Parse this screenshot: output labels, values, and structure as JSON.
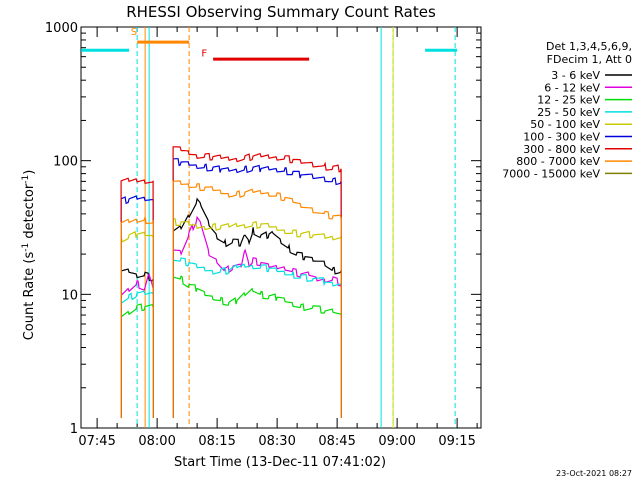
{
  "chart_data": {
    "type": "line",
    "title": "RHESSI Observing Summary Count Rates",
    "xlabel": "Start Time (13-Dec-11 07:41:02)",
    "ylabel_main": "Count Rate (s",
    "ylabel_sup1": "-1",
    "ylabel_mid": " detector",
    "ylabel_sup2": "-1",
    "ylabel_end": ")",
    "yscale": "log",
    "ylim": [
      1,
      1000
    ],
    "xlim_minutes": [
      -3.03,
      96.97
    ],
    "x_origin": "07:44",
    "y_ticks": [
      1,
      10,
      100,
      1000
    ],
    "y_tick_labels": [
      "1",
      "10",
      "100",
      "1000"
    ],
    "x_ticks_minutes": [
      1,
      16,
      31,
      46,
      61,
      76,
      91
    ],
    "x_tick_labels": [
      "07:45",
      "08:00",
      "08:15",
      "08:30",
      "08:45",
      "09:00",
      "09:15"
    ],
    "legend_header": [
      "Det 1,3,4,5,6,9,",
      "FDecim 1, Att 0"
    ],
    "legend_position": "right",
    "series": [
      {
        "name": "3 - 6 keV",
        "color": "#000000",
        "seg1": [
          [
            7,
            15
          ],
          [
            9,
            15
          ],
          [
            11,
            14
          ],
          [
            13,
            14
          ],
          [
            15,
            13
          ]
        ],
        "seg2": [
          [
            20,
            30
          ],
          [
            22,
            32
          ],
          [
            24,
            40
          ],
          [
            26,
            50
          ],
          [
            27,
            45
          ],
          [
            29,
            33
          ],
          [
            31,
            27
          ],
          [
            33,
            24
          ],
          [
            35,
            25
          ],
          [
            37,
            24
          ],
          [
            38,
            28
          ],
          [
            39,
            25
          ],
          [
            40,
            30
          ],
          [
            42,
            27
          ],
          [
            44,
            28
          ],
          [
            45,
            29
          ],
          [
            47,
            25
          ],
          [
            49,
            22
          ],
          [
            51,
            20
          ],
          [
            53,
            19
          ],
          [
            55,
            18
          ],
          [
            58,
            17
          ],
          [
            60,
            15
          ],
          [
            62,
            15
          ]
        ]
      },
      {
        "name": "6 - 12 keV",
        "color": "#e000e0",
        "seg1": [
          [
            7,
            10
          ],
          [
            9,
            11
          ],
          [
            11,
            12
          ],
          [
            13,
            11
          ],
          [
            14,
            14
          ],
          [
            15,
            11
          ]
        ],
        "seg2": [
          [
            20,
            22
          ],
          [
            22,
            21
          ],
          [
            24,
            28
          ],
          [
            26,
            37
          ],
          [
            27,
            33
          ],
          [
            29,
            20
          ],
          [
            31,
            18
          ],
          [
            33,
            15
          ],
          [
            35,
            16
          ],
          [
            37,
            16
          ],
          [
            38,
            22
          ],
          [
            39,
            17
          ],
          [
            40,
            18
          ],
          [
            42,
            17
          ],
          [
            44,
            16
          ],
          [
            46,
            16
          ],
          [
            48,
            16
          ],
          [
            50,
            15
          ],
          [
            52,
            14
          ],
          [
            54,
            14
          ],
          [
            56,
            13
          ],
          [
            58,
            13
          ],
          [
            60,
            13
          ],
          [
            62,
            12
          ]
        ]
      },
      {
        "name": "12 - 25 keV",
        "color": "#00dd00",
        "seg1": [
          [
            7,
            7
          ],
          [
            9,
            7.5
          ],
          [
            11,
            8
          ],
          [
            13,
            8
          ],
          [
            15,
            8
          ]
        ],
        "seg2": [
          [
            20,
            14
          ],
          [
            22,
            13
          ],
          [
            24,
            11.5
          ],
          [
            26,
            11
          ],
          [
            28,
            10
          ],
          [
            30,
            9.5
          ],
          [
            32,
            9
          ],
          [
            34,
            8.5
          ],
          [
            36,
            9
          ],
          [
            38,
            10
          ],
          [
            40,
            11
          ],
          [
            42,
            10
          ],
          [
            44,
            9.5
          ],
          [
            46,
            9.5
          ],
          [
            48,
            9
          ],
          [
            50,
            8.5
          ],
          [
            52,
            8
          ],
          [
            55,
            8
          ],
          [
            58,
            7.5
          ],
          [
            60,
            7.5
          ],
          [
            62,
            7
          ]
        ]
      },
      {
        "name": "25 - 50 keV",
        "color": "#00e0e0",
        "seg1": [
          [
            7,
            9
          ],
          [
            9,
            9.5
          ],
          [
            11,
            10
          ],
          [
            13,
            10
          ],
          [
            15,
            10
          ]
        ],
        "seg2": [
          [
            20,
            19
          ],
          [
            22,
            18
          ],
          [
            24,
            17
          ],
          [
            26,
            16
          ],
          [
            28,
            15.5
          ],
          [
            30,
            15
          ],
          [
            32,
            15
          ],
          [
            34,
            15
          ],
          [
            36,
            16
          ],
          [
            38,
            16.5
          ],
          [
            40,
            16.5
          ],
          [
            42,
            16
          ],
          [
            44,
            15.5
          ],
          [
            46,
            15
          ],
          [
            48,
            14.5
          ],
          [
            50,
            14
          ],
          [
            52,
            13.5
          ],
          [
            55,
            13
          ],
          [
            58,
            12.5
          ],
          [
            60,
            12
          ],
          [
            62,
            12
          ]
        ]
      },
      {
        "name": "50 - 100 keV",
        "color": "#c8c800",
        "seg1": [
          [
            7,
            26
          ],
          [
            9,
            27
          ],
          [
            11,
            28
          ],
          [
            13,
            28
          ],
          [
            15,
            27
          ]
        ],
        "seg2": [
          [
            20,
            35
          ],
          [
            22,
            34
          ],
          [
            24,
            33
          ],
          [
            26,
            32
          ],
          [
            28,
            32
          ],
          [
            30,
            32
          ],
          [
            32,
            32
          ],
          [
            34,
            32
          ],
          [
            36,
            33
          ],
          [
            38,
            33
          ],
          [
            40,
            33
          ],
          [
            42,
            33
          ],
          [
            44,
            32
          ],
          [
            46,
            31
          ],
          [
            48,
            30
          ],
          [
            50,
            29
          ],
          [
            52,
            28
          ],
          [
            55,
            28
          ],
          [
            58,
            27
          ],
          [
            60,
            27
          ],
          [
            62,
            27
          ]
        ]
      },
      {
        "name": "100 - 300 keV",
        "color": "#0000dd",
        "seg1": [
          [
            7,
            50
          ],
          [
            9,
            51
          ],
          [
            11,
            52
          ],
          [
            13,
            52
          ],
          [
            15,
            51
          ]
        ],
        "seg2": [
          [
            20,
            100
          ],
          [
            22,
            97
          ],
          [
            24,
            94
          ],
          [
            26,
            91
          ],
          [
            28,
            89
          ],
          [
            30,
            87
          ],
          [
            32,
            86
          ],
          [
            34,
            85
          ],
          [
            36,
            85
          ],
          [
            38,
            86
          ],
          [
            40,
            87
          ],
          [
            42,
            87
          ],
          [
            44,
            87
          ],
          [
            46,
            86
          ],
          [
            48,
            84
          ],
          [
            50,
            81
          ],
          [
            52,
            78
          ],
          [
            55,
            75
          ],
          [
            58,
            73
          ],
          [
            60,
            70
          ],
          [
            62,
            70
          ]
        ]
      },
      {
        "name": "300 - 800 keV",
        "color": "#e00000",
        "seg1": [
          [
            7,
            69
          ],
          [
            9,
            70
          ],
          [
            11,
            71
          ],
          [
            13,
            71
          ],
          [
            15,
            70
          ]
        ],
        "seg2": [
          [
            20,
            125
          ],
          [
            22,
            120
          ],
          [
            24,
            115
          ],
          [
            26,
            110
          ],
          [
            28,
            108
          ],
          [
            30,
            106
          ],
          [
            32,
            105
          ],
          [
            34,
            104
          ],
          [
            36,
            104
          ],
          [
            38,
            105
          ],
          [
            40,
            107
          ],
          [
            42,
            108
          ],
          [
            44,
            108
          ],
          [
            46,
            107
          ],
          [
            48,
            105
          ],
          [
            50,
            101
          ],
          [
            52,
            97
          ],
          [
            55,
            93
          ],
          [
            58,
            90
          ],
          [
            60,
            88
          ],
          [
            62,
            87
          ]
        ]
      },
      {
        "name": "800 - 7000 keV",
        "color": "#ff8800",
        "seg1": [
          [
            7,
            34
          ],
          [
            9,
            35
          ],
          [
            11,
            36
          ],
          [
            13,
            36
          ],
          [
            15,
            35
          ]
        ],
        "seg2": [
          [
            20,
            70
          ],
          [
            22,
            68
          ],
          [
            24,
            66
          ],
          [
            26,
            64
          ],
          [
            28,
            62
          ],
          [
            30,
            60
          ],
          [
            32,
            58
          ],
          [
            34,
            56
          ],
          [
            36,
            56
          ],
          [
            38,
            57
          ],
          [
            40,
            58
          ],
          [
            42,
            58
          ],
          [
            44,
            57
          ],
          [
            46,
            55
          ],
          [
            48,
            52
          ],
          [
            50,
            49
          ],
          [
            52,
            46
          ],
          [
            55,
            43
          ],
          [
            58,
            40
          ],
          [
            60,
            38
          ],
          [
            62,
            37
          ]
        ]
      },
      {
        "name": "7000 - 15000 keV",
        "color": "#808000",
        "seg1": [],
        "seg2": []
      }
    ],
    "annotations": {
      "saa_label": "S",
      "flare_label": "F",
      "orange_bar": {
        "x": [
          11,
          24
        ],
        "y": 770
      },
      "red_bar": {
        "x": [
          30,
          54
        ],
        "y": 575
      },
      "cyan_bars": [
        {
          "x": [
            -3,
            9
          ],
          "y": 670
        },
        {
          "x": [
            83,
            91
          ],
          "y": 670
        }
      ],
      "cyan_solid_lines": [
        14,
        72
      ],
      "cyan_dashed_lines": [
        11,
        75,
        90.5
      ],
      "orange_solid_lines": [
        13
      ],
      "orange_dashed_lines": [
        24
      ],
      "yellow_solid_lines": [
        75
      ]
    },
    "timestamp": "23-Oct-2021 08:27"
  }
}
